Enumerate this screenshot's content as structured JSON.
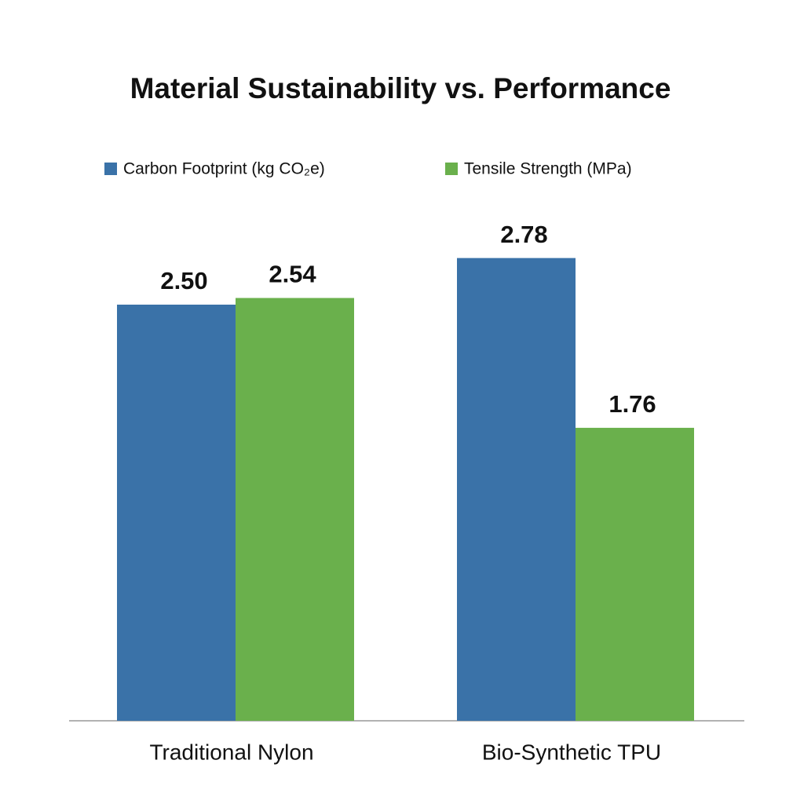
{
  "chart_data": {
    "type": "bar",
    "title": "Material Sustainability vs. Performance",
    "categories": [
      "Traditional Nylon",
      "Bio-Synthetic TPU"
    ],
    "series": [
      {
        "name": "Carbon Footprint (kg CO₂e)",
        "color": "#3a72a8",
        "values": [
          2.5,
          2.78
        ],
        "value_labels": [
          "2.50",
          "2.78"
        ]
      },
      {
        "name": "Tensile Strength (MPa)",
        "color": "#6ab04c",
        "values": [
          2.54,
          1.76
        ],
        "value_labels": [
          "2.54",
          "1.76"
        ]
      }
    ]
  }
}
